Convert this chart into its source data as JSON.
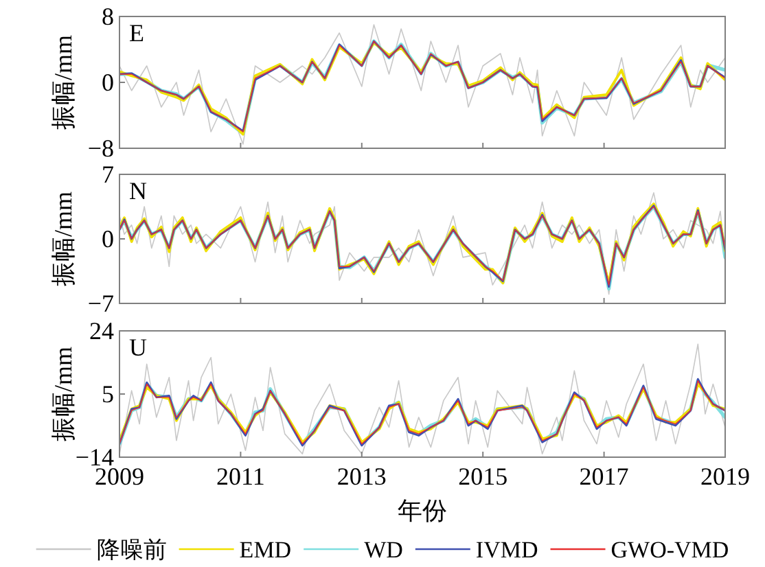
{
  "chart_data": [
    {
      "type": "line",
      "ylabel": "振幅/mm",
      "annotations": [
        "E"
      ],
      "tick_labels": "y",
      "legend": false,
      "xlim": [
        2009,
        2019
      ],
      "xticks": [
        2009,
        2011,
        2013,
        2015,
        2017,
        2019
      ],
      "ylim": [
        -8,
        8
      ],
      "yticks": [
        -8,
        0,
        8
      ],
      "x": [
        2009.0,
        2009.2,
        2009.45,
        2009.69,
        2009.94,
        2010.06,
        2010.31,
        2010.51,
        2010.76,
        2011.04,
        2011.24,
        2011.65,
        2012.02,
        2012.18,
        2012.39,
        2012.63,
        2013.0,
        2013.2,
        2013.45,
        2013.65,
        2013.98,
        2014.14,
        2014.39,
        2014.59,
        2014.76,
        2015.0,
        2015.29,
        2015.49,
        2015.61,
        2015.82,
        2015.9,
        2015.98,
        2016.22,
        2016.51,
        2016.67,
        2017.04,
        2017.29,
        2017.49,
        2017.94,
        2018.27,
        2018.43,
        2018.59,
        2018.71,
        2019.0
      ],
      "series": [
        {
          "color": "#c8c8c8",
          "values": [
            2,
            -1,
            2,
            -3,
            0,
            -4,
            1.5,
            -6,
            -2,
            -7.5,
            2,
            0,
            2,
            1,
            3,
            6,
            -0.5,
            7,
            1,
            6.5,
            -1,
            5,
            0,
            4.5,
            -3,
            2,
            3.5,
            -1.5,
            3,
            -2.5,
            1.5,
            -6.5,
            -1,
            -6.5,
            0,
            -4,
            3,
            -4.5,
            1,
            4.5,
            -3,
            1.5,
            0,
            3
          ]
        },
        {
          "color": "#f0e000",
          "values": [
            1.3,
            0.8,
            0.3,
            -1.2,
            -1.8,
            -2.2,
            -0.3,
            -3.2,
            -4.3,
            -6.3,
            0.8,
            2.2,
            -0.2,
            2.8,
            0.3,
            4.3,
            2.3,
            4.8,
            3.3,
            4.2,
            1.3,
            3.2,
            2.3,
            2.2,
            -0.4,
            0.2,
            1.8,
            0.3,
            1.2,
            -0.2,
            -0.3,
            -4.4,
            -2.7,
            -4.3,
            -1.8,
            -1.5,
            1.5,
            -2.8,
            -0.8,
            3,
            -0.3,
            -0.8,
            2.3,
            0.3
          ]
        },
        {
          "color": "#7fdfe0",
          "values": [
            1,
            1,
            0.1,
            -1,
            -1.4,
            -2,
            -0.5,
            -3.5,
            -4.6,
            -6.2,
            0.5,
            2.1,
            0,
            2.4,
            0.6,
            4.5,
            2.1,
            5,
            3,
            4.6,
            1.1,
            3.5,
            2,
            2.4,
            -0.6,
            0,
            1.5,
            0.6,
            1,
            -0.4,
            -0.5,
            -4.9,
            -3.1,
            -4,
            -2,
            -1.8,
            0.4,
            -2.5,
            -1.1,
            2.5,
            -0.4,
            -0.6,
            2.1,
            1.5
          ]
        },
        {
          "color": "#4050b0",
          "values": [
            1,
            1.1,
            0,
            -1,
            -1.5,
            -2,
            -0.5,
            -3.6,
            -4.5,
            -5.9,
            0.3,
            2,
            0,
            2.5,
            0.5,
            4.6,
            2,
            5,
            3,
            4.5,
            1,
            3.4,
            2,
            2.5,
            -0.7,
            0,
            1.5,
            0.5,
            1,
            -0.5,
            -0.6,
            -4.7,
            -3,
            -4,
            -2,
            -1.9,
            0.5,
            -2.6,
            -1,
            2.7,
            -0.5,
            -0.5,
            2,
            0.6
          ]
        },
        {
          "color": "#e83030",
          "values": [
            1,
            1,
            0,
            -1,
            -1.5,
            -2,
            -0.5,
            -3.5,
            -4.5,
            -6,
            0.5,
            2,
            0,
            2.5,
            0.5,
            4.5,
            2,
            5,
            3,
            4.5,
            1,
            3.5,
            2,
            2.5,
            -0.7,
            0,
            1.5,
            0.5,
            1,
            -0.5,
            -0.5,
            -4.5,
            -3,
            -4,
            -2,
            -1.8,
            0.5,
            -2.5,
            -1,
            2.5,
            -0.5,
            -0.5,
            2,
            0.5
          ]
        }
      ]
    },
    {
      "type": "line",
      "ylabel": "振幅/mm",
      "annotations": [
        "N"
      ],
      "tick_labels": "y",
      "legend": false,
      "xlim": [
        2009,
        2019
      ],
      "xticks": [
        2009,
        2011,
        2013,
        2015,
        2017,
        2019
      ],
      "ylim": [
        -7,
        7
      ],
      "yticks": [
        -7,
        0,
        7
      ],
      "x": [
        2009.0,
        2009.08,
        2009.2,
        2009.29,
        2009.41,
        2009.53,
        2009.69,
        2009.82,
        2009.9,
        2010.04,
        2010.18,
        2010.27,
        2010.43,
        2010.67,
        2011.0,
        2011.24,
        2011.45,
        2011.57,
        2011.69,
        2011.78,
        2011.98,
        2012.14,
        2012.22,
        2012.47,
        2012.55,
        2012.63,
        2012.8,
        2013.04,
        2013.2,
        2013.45,
        2013.61,
        2013.78,
        2013.94,
        2014.18,
        2014.51,
        2014.67,
        2015.04,
        2015.16,
        2015.33,
        2015.53,
        2015.69,
        2015.82,
        2015.98,
        2016.14,
        2016.31,
        2016.47,
        2016.59,
        2016.76,
        2016.92,
        2017.08,
        2017.2,
        2017.33,
        2017.49,
        2017.61,
        2017.82,
        2017.98,
        2018.14,
        2018.31,
        2018.43,
        2018.55,
        2018.69,
        2018.8,
        2018.92,
        2019.0
      ],
      "series": [
        {
          "color": "#c8c8c8",
          "values": [
            2.5,
            0.5,
            1.5,
            -0.5,
            3.5,
            -1,
            2.5,
            -3,
            2.5,
            0.5,
            1.5,
            -0.5,
            0.5,
            -1,
            3.5,
            -2.5,
            4,
            -1.5,
            2.5,
            -2.5,
            2,
            -0.5,
            0.5,
            1.5,
            3.5,
            -4.5,
            -1.5,
            -3.5,
            -2,
            -2,
            -1,
            -2.5,
            1,
            -4,
            2.5,
            -2,
            -1.5,
            -5,
            -3,
            -0.5,
            1.5,
            -1,
            4,
            -1,
            1.5,
            0.5,
            1.5,
            -0.5,
            1,
            -6,
            1,
            -3.5,
            2.5,
            0.5,
            5,
            0,
            1,
            -1,
            2,
            1.5,
            1,
            -0.5,
            3,
            -2.5
          ]
        },
        {
          "color": "#f0e000",
          "values": [
            1.3,
            2.3,
            -0.3,
            1.2,
            2.2,
            0.2,
            1.3,
            -1.4,
            1.2,
            2.3,
            -0.3,
            1.2,
            -1.3,
            0.8,
            2.3,
            -1.2,
            2.8,
            -0.2,
            1.2,
            -1.2,
            0.7,
            1.2,
            -1.3,
            3.3,
            2.2,
            -3.3,
            -2.8,
            -2.2,
            -3.8,
            -0.3,
            -2.8,
            -0.8,
            -0.3,
            -2.8,
            1.3,
            -0.8,
            -3.3,
            -3.3,
            -4.8,
            1.2,
            -0.3,
            0.8,
            2.8,
            0.3,
            -0.3,
            2.3,
            -0.3,
            1.2,
            -0.8,
            -4.8,
            -0.3,
            -2.3,
            1.3,
            2.3,
            3.8,
            1.8,
            -0.8,
            0.8,
            0.3,
            3.3,
            -0.8,
            1.3,
            1.8,
            -1.3
          ]
        },
        {
          "color": "#7fdfe0",
          "values": [
            1.1,
            2,
            0.1,
            1,
            2,
            0.5,
            1,
            -1.1,
            1,
            2,
            0,
            1,
            -1,
            0.6,
            2,
            -1,
            2.5,
            0,
            1,
            -1,
            0.5,
            1,
            -1,
            3,
            2,
            -3,
            -3.1,
            -2,
            -3.5,
            -0.5,
            -2.5,
            -1,
            -0.5,
            -2.5,
            1,
            -0.6,
            -3,
            -3.5,
            -4.7,
            1,
            0,
            0.5,
            2.5,
            0.5,
            0,
            2.1,
            0,
            1,
            -0.5,
            -5.4,
            -0.5,
            -2,
            1,
            2,
            3.5,
            1.5,
            -0.5,
            0.5,
            0.5,
            3,
            -0.5,
            1,
            1.5,
            -2
          ]
        },
        {
          "color": "#4050b0",
          "values": [
            1,
            2.1,
            0,
            1,
            2,
            0.5,
            1,
            -1,
            1,
            2,
            0,
            1,
            -1,
            0.5,
            2,
            -1,
            2.5,
            0,
            1,
            -1,
            0.5,
            1,
            -1,
            3,
            2,
            -3.2,
            -3,
            -2,
            -3.6,
            -0.5,
            -2.5,
            -1,
            -0.5,
            -2.5,
            1,
            -0.5,
            -3,
            -3.6,
            -4.6,
            1,
            0,
            0.5,
            2.6,
            0.5,
            0,
            2,
            0,
            1,
            -0.5,
            -5.2,
            -0.5,
            -2,
            1,
            2,
            3.6,
            1.5,
            -0.5,
            0.5,
            0.5,
            3.1,
            -0.5,
            1,
            1.5,
            -1.2
          ]
        },
        {
          "color": "#e83030",
          "values": [
            1,
            2,
            0,
            1,
            2,
            0.5,
            1,
            -1,
            1,
            2,
            0,
            1,
            -1,
            0.5,
            2,
            -1,
            2.5,
            0,
            1,
            -1,
            0.5,
            1,
            -1,
            3,
            2,
            -3,
            -3,
            -2,
            -3.5,
            -0.5,
            -2.5,
            -1,
            -0.5,
            -2.5,
            1,
            -0.5,
            -3,
            -3.5,
            -4.5,
            1,
            0,
            0.5,
            2.5,
            0.5,
            0,
            2,
            0,
            1,
            -0.5,
            -5,
            -0.5,
            -2,
            1,
            2,
            3.5,
            1.5,
            -0.5,
            0.5,
            0.5,
            3,
            -0.5,
            1,
            1.5,
            -1
          ]
        }
      ]
    },
    {
      "type": "line",
      "xlabel": "年份",
      "ylabel": "振幅/mm",
      "annotations": [
        "U"
      ],
      "legend": "bottom",
      "xlim": [
        2009,
        2019
      ],
      "xticks": [
        2009,
        2011,
        2013,
        2015,
        2017,
        2019
      ],
      "ylim": [
        -14,
        24
      ],
      "yticks": [
        -14,
        5,
        24
      ],
      "x": [
        2009.0,
        2009.2,
        2009.33,
        2009.45,
        2009.61,
        2009.82,
        2009.94,
        2010.14,
        2010.22,
        2010.35,
        2010.51,
        2010.63,
        2010.84,
        2011.08,
        2011.24,
        2011.37,
        2011.49,
        2011.73,
        2012.02,
        2012.22,
        2012.47,
        2012.71,
        2013.0,
        2013.29,
        2013.45,
        2013.61,
        2013.78,
        2013.94,
        2014.14,
        2014.35,
        2014.59,
        2014.76,
        2014.88,
        2015.08,
        2015.24,
        2015.65,
        2015.73,
        2015.98,
        2016.22,
        2016.31,
        2016.51,
        2016.67,
        2016.88,
        2017.04,
        2017.24,
        2017.37,
        2017.65,
        2017.86,
        2018.02,
        2018.18,
        2018.43,
        2018.55,
        2018.67,
        2018.8,
        2019.0
      ],
      "series": [
        {
          "name": "降噪前",
          "color": "#c8c8c8",
          "values": [
            -13,
            6,
            -4,
            14,
            -2,
            10,
            -9,
            9,
            -3,
            10,
            16,
            -4,
            5,
            -12,
            4,
            -6,
            13,
            -7,
            -13,
            0,
            8,
            -6,
            -13,
            1,
            -5,
            9,
            -11,
            -2,
            -11,
            3,
            10,
            -10,
            3,
            -11,
            6,
            -4,
            7,
            -13,
            -2,
            -9,
            12,
            -3,
            -10,
            3,
            -8,
            2,
            14,
            -9,
            3,
            -10,
            8,
            20,
            -1,
            8,
            -5
          ]
        },
        {
          "name": "EMD",
          "color": "#f0e000",
          "values": [
            -9,
            0.5,
            1.5,
            7,
            4.5,
            3.5,
            -3,
            3.5,
            3.5,
            3.5,
            7.5,
            3.5,
            -0.5,
            -6.5,
            -1.5,
            0.5,
            5.5,
            -0.5,
            -9.5,
            -6.5,
            1.5,
            0.5,
            -9.5,
            -5.5,
            0.5,
            2.5,
            -5.5,
            -6.5,
            -5.5,
            -2.5,
            2.5,
            -3.5,
            -3.5,
            -4.5,
            0.5,
            1.5,
            0.5,
            -8.5,
            -7.5,
            -2.5,
            4.5,
            3.5,
            -4.5,
            -3.5,
            -1.5,
            -3.5,
            6.5,
            -1.5,
            -3.5,
            -3.5,
            0.5,
            8,
            5.5,
            1.5,
            0.5
          ]
        },
        {
          "name": "WD",
          "color": "#7fdfe0",
          "values": [
            -10,
            0,
            1,
            8,
            4.5,
            4,
            -2,
            3.5,
            4,
            3,
            8,
            3.5,
            -1,
            -7,
            -0.5,
            0,
            6.5,
            -1,
            -10,
            -5.5,
            1,
            0.5,
            -10,
            -5,
            1,
            2.5,
            -6,
            -7,
            -4.5,
            -3,
            3,
            -4,
            -2.5,
            -5,
            0.5,
            1,
            0.5,
            -9,
            -6.5,
            -2.5,
            5,
            3.5,
            -5,
            -2.5,
            -2,
            -4,
            7,
            -2,
            -3,
            -4,
            0.5,
            9,
            5,
            2.5,
            -2
          ]
        },
        {
          "name": "IVMD",
          "color": "#4050b0",
          "values": [
            -10,
            0.5,
            1,
            8.5,
            4,
            4.5,
            -2.5,
            3,
            4.5,
            3,
            8.5,
            3,
            -1,
            -7.5,
            -1,
            0.5,
            6,
            -1,
            -10.5,
            -6,
            1.5,
            0,
            -10.5,
            -5,
            1.5,
            2,
            -6.5,
            -7.5,
            -5,
            -3,
            3.5,
            -4.5,
            -3,
            -5.5,
            0,
            1.5,
            0,
            -9.5,
            -7,
            -3,
            5.5,
            3,
            -5.5,
            -3,
            -2,
            -4.5,
            7.5,
            -2.5,
            -3.5,
            -4.5,
            0,
            9.5,
            5.5,
            2,
            0
          ]
        },
        {
          "name": "GWO-VMD",
          "color": "#e83030",
          "values": [
            -10,
            0,
            1,
            8,
            4,
            4,
            -2,
            3,
            4,
            3,
            8,
            3,
            -1,
            -7,
            -1,
            0,
            6,
            -1,
            -10,
            -6,
            1,
            0,
            -10,
            -5,
            1,
            2,
            -6,
            -7,
            -5,
            -3,
            3,
            -4,
            -3,
            -5,
            0,
            1,
            0,
            -9,
            -7,
            -3,
            5,
            3,
            -5,
            -3,
            -2,
            -4,
            7,
            -2,
            -3,
            -4,
            0,
            9,
            5,
            2,
            0
          ]
        }
      ]
    }
  ]
}
